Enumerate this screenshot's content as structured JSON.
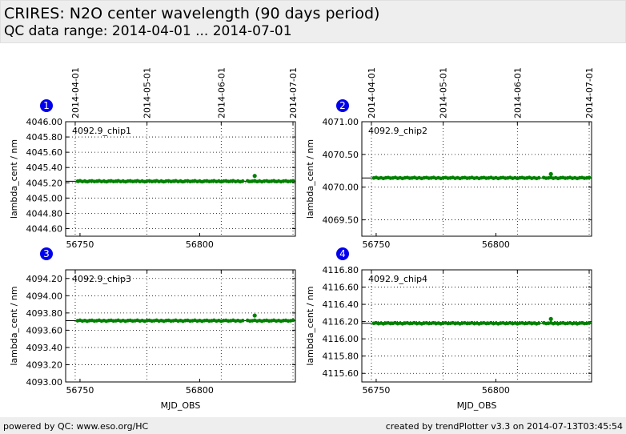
{
  "header": {
    "title": "CRIRES: N2O center wavelength (90 days period)",
    "subtitle": "QC data range: 2014-04-01 ... 2014-07-01"
  },
  "footer": {
    "left": "powered by QC: www.eso.org/HC",
    "right": "created by trendPlotter v3.3 on 2014-07-13T03:45:54"
  },
  "colors": {
    "points": "#008000",
    "badge": "#0000ee",
    "reference_line": "#000000"
  },
  "chart_data": [
    {
      "type": "scatter",
      "badge": "1",
      "series_label": "4092.9_chip1",
      "xlabel": "",
      "ylabel": "lambda_cent / nm",
      "xlim": [
        56744,
        56840
      ],
      "ylim": [
        4044.5,
        4046.0
      ],
      "yticks": [
        "4044.60",
        "4044.80",
        "4045.00",
        "4045.20",
        "4045.40",
        "4045.60",
        "4045.80",
        "4046.00"
      ],
      "reference_y": 4045.22,
      "outlier": {
        "x": 56823,
        "y": 4045.29
      },
      "base_y": 4045.22,
      "points": []
    },
    {
      "type": "scatter",
      "badge": "2",
      "series_label": "4092.9_chip2",
      "xlabel": "",
      "ylabel": "lambda_cent / nm",
      "xlim": [
        56744,
        56840
      ],
      "ylim": [
        4069.25,
        4071.0
      ],
      "yticks": [
        "4069.50",
        "4070.00",
        "4070.50",
        "4071.00"
      ],
      "reference_y": 4070.14,
      "outlier": {
        "x": 56823,
        "y": 4070.2
      },
      "base_y": 4070.14,
      "points": []
    },
    {
      "type": "scatter",
      "badge": "3",
      "series_label": "4092.9_chip3",
      "xlabel": "MJD_OBS",
      "ylabel": "lambda_cent / nm",
      "xlim": [
        56744,
        56840
      ],
      "ylim": [
        4093.0,
        4094.3
      ],
      "yticks": [
        "4093.00",
        "4093.20",
        "4093.40",
        "4093.60",
        "4093.80",
        "4094.00",
        "4094.20"
      ],
      "reference_y": 4093.71,
      "outlier": {
        "x": 56823,
        "y": 4093.77
      },
      "base_y": 4093.71,
      "points": []
    },
    {
      "type": "scatter",
      "badge": "4",
      "series_label": "4092.9_chip4",
      "xlabel": "MJD_OBS",
      "ylabel": "lambda_cent / nm",
      "xlim": [
        56744,
        56840
      ],
      "ylim": [
        4115.5,
        4116.8
      ],
      "yticks": [
        "4115.60",
        "4115.80",
        "4116.00",
        "4116.20",
        "4116.40",
        "4116.60",
        "4116.80"
      ],
      "reference_y": 4116.18,
      "outlier": {
        "x": 56823,
        "y": 4116.23
      },
      "base_y": 4116.18,
      "points": []
    }
  ],
  "x_axis": {
    "ticks": [
      {
        "value": 56750,
        "label": "56750"
      },
      {
        "value": 56800,
        "label": "56800"
      }
    ],
    "date_ticks": [
      {
        "value": 56748,
        "label": "2014-04-01"
      },
      {
        "value": 56778,
        "label": "2014-05-01"
      },
      {
        "value": 56809,
        "label": "2014-06-01"
      },
      {
        "value": 56839,
        "label": "2014-07-01"
      }
    ]
  }
}
